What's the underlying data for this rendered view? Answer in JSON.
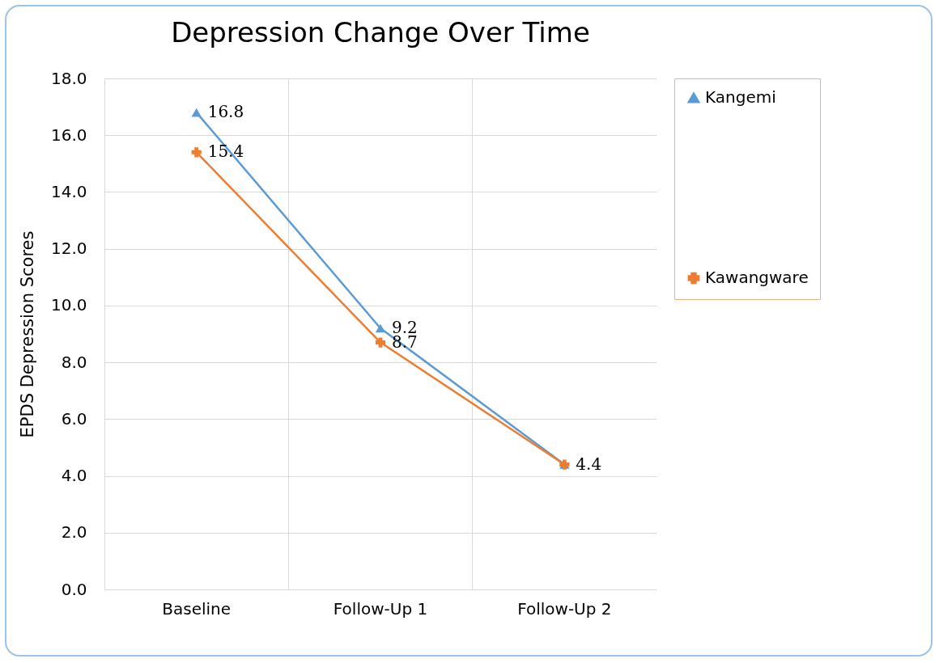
{
  "chart_data": {
    "type": "line",
    "title": "Depression Change Over Time",
    "ylabel": "EPDS Depression Scores",
    "categories": [
      "Baseline",
      "Follow-Up 1",
      "Follow-Up 2"
    ],
    "series": [
      {
        "name": "Kangemi",
        "color": "#5b9bd5",
        "marker": "triangle",
        "values": [
          16.8,
          9.2,
          4.4
        ],
        "value_labels": [
          "16.8",
          "9.2",
          "4.4"
        ]
      },
      {
        "name": "Kawangware",
        "color": "#ed7d31",
        "marker": "cross",
        "values": [
          15.4,
          8.7,
          4.4
        ],
        "value_labels": [
          "15.4",
          "8.7",
          null
        ]
      }
    ],
    "ylim": [
      0,
      18
    ],
    "yticks": [
      {
        "value": 0,
        "label": "0.0"
      },
      {
        "value": 2,
        "label": "2.0"
      },
      {
        "value": 4,
        "label": "4.0"
      },
      {
        "value": 6,
        "label": "6.0"
      },
      {
        "value": 8,
        "label": "8.0"
      },
      {
        "value": 10,
        "label": "10.0"
      },
      {
        "value": 12,
        "label": "12.0"
      },
      {
        "value": 14,
        "label": "14.0"
      },
      {
        "value": 16,
        "label": "16.0"
      },
      {
        "value": 18,
        "label": "18.0"
      }
    ],
    "grid": true,
    "legend": "right",
    "line_style": "solid"
  }
}
